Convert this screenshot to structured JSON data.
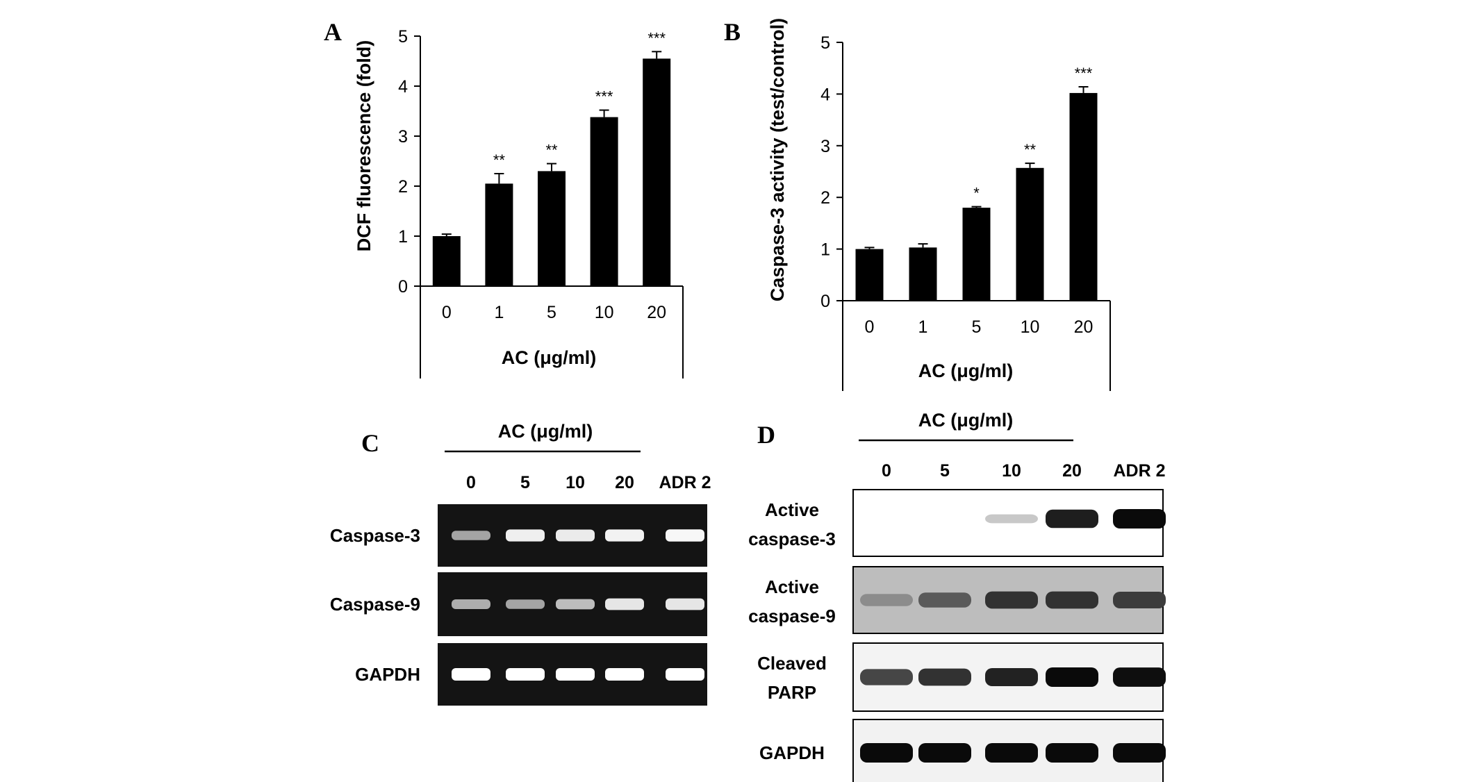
{
  "chart_data": [
    {
      "panel": "A",
      "type": "bar",
      "categories": [
        "0",
        "1",
        "5",
        "10",
        "20"
      ],
      "values": [
        1.0,
        2.05,
        2.3,
        3.38,
        4.55
      ],
      "errors": [
        0.04,
        0.2,
        0.15,
        0.14,
        0.14
      ],
      "significance": [
        "",
        "**",
        "**",
        "***",
        "***"
      ],
      "xlabel": "AC (μg/ml)",
      "ylabel": "DCF fluorescence (fold)",
      "ylim": [
        0,
        5
      ],
      "yticks": [
        "0",
        "1",
        "2",
        "3",
        "4",
        "5"
      ],
      "bar_color": "#000000",
      "grid": false
    },
    {
      "panel": "B",
      "type": "bar",
      "categories": [
        "0",
        "1",
        "5",
        "10",
        "20"
      ],
      "values": [
        1.0,
        1.03,
        1.8,
        2.57,
        4.02
      ],
      "errors": [
        0.03,
        0.07,
        0.02,
        0.09,
        0.12
      ],
      "significance": [
        "",
        "",
        "*",
        "**",
        "***"
      ],
      "xlabel": "AC (μg/ml)",
      "ylabel": "Caspase-3 activity (test/control)",
      "ylim": [
        0,
        5
      ],
      "yticks": [
        "0",
        "1",
        "2",
        "3",
        "4",
        "5"
      ],
      "bar_color": "#000000",
      "grid": false
    }
  ],
  "panel_c": {
    "letter": "C",
    "header": "AC (μg/ml)",
    "lanes": [
      "0",
      "5",
      "10",
      "20",
      "ADR 2"
    ],
    "rows": [
      {
        "label": "Caspase-3",
        "intensities": [
          0.45,
          0.9,
          0.88,
          0.92,
          0.95
        ]
      },
      {
        "label": "Caspase-9",
        "intensities": [
          0.5,
          0.45,
          0.6,
          0.85,
          0.85
        ]
      },
      {
        "label": "GAPDH",
        "intensities": [
          1.0,
          1.0,
          1.0,
          1.0,
          1.0
        ]
      }
    ]
  },
  "panel_d": {
    "letter": "D",
    "header": "AC (μg/ml)",
    "lanes": [
      "0",
      "5",
      "10",
      "20",
      "ADR 2"
    ],
    "rows": [
      {
        "label_line1": "Active",
        "label_line2": "caspase-3",
        "intensities": [
          0.0,
          0.0,
          0.05,
          0.9,
          1.0
        ]
      },
      {
        "label_line1": "Active",
        "label_line2": "caspase-9",
        "intensities": [
          0.35,
          0.6,
          0.8,
          0.8,
          0.75
        ]
      },
      {
        "label_line1": "Cleaved",
        "label_line2": "PARP",
        "intensities": [
          0.7,
          0.8,
          0.88,
          1.0,
          0.98
        ]
      },
      {
        "label_line1": "GAPDH",
        "label_line2": "",
        "intensities": [
          1.0,
          1.0,
          1.0,
          1.0,
          1.0
        ]
      }
    ]
  },
  "panel_labels": {
    "a": "A",
    "b": "B"
  }
}
